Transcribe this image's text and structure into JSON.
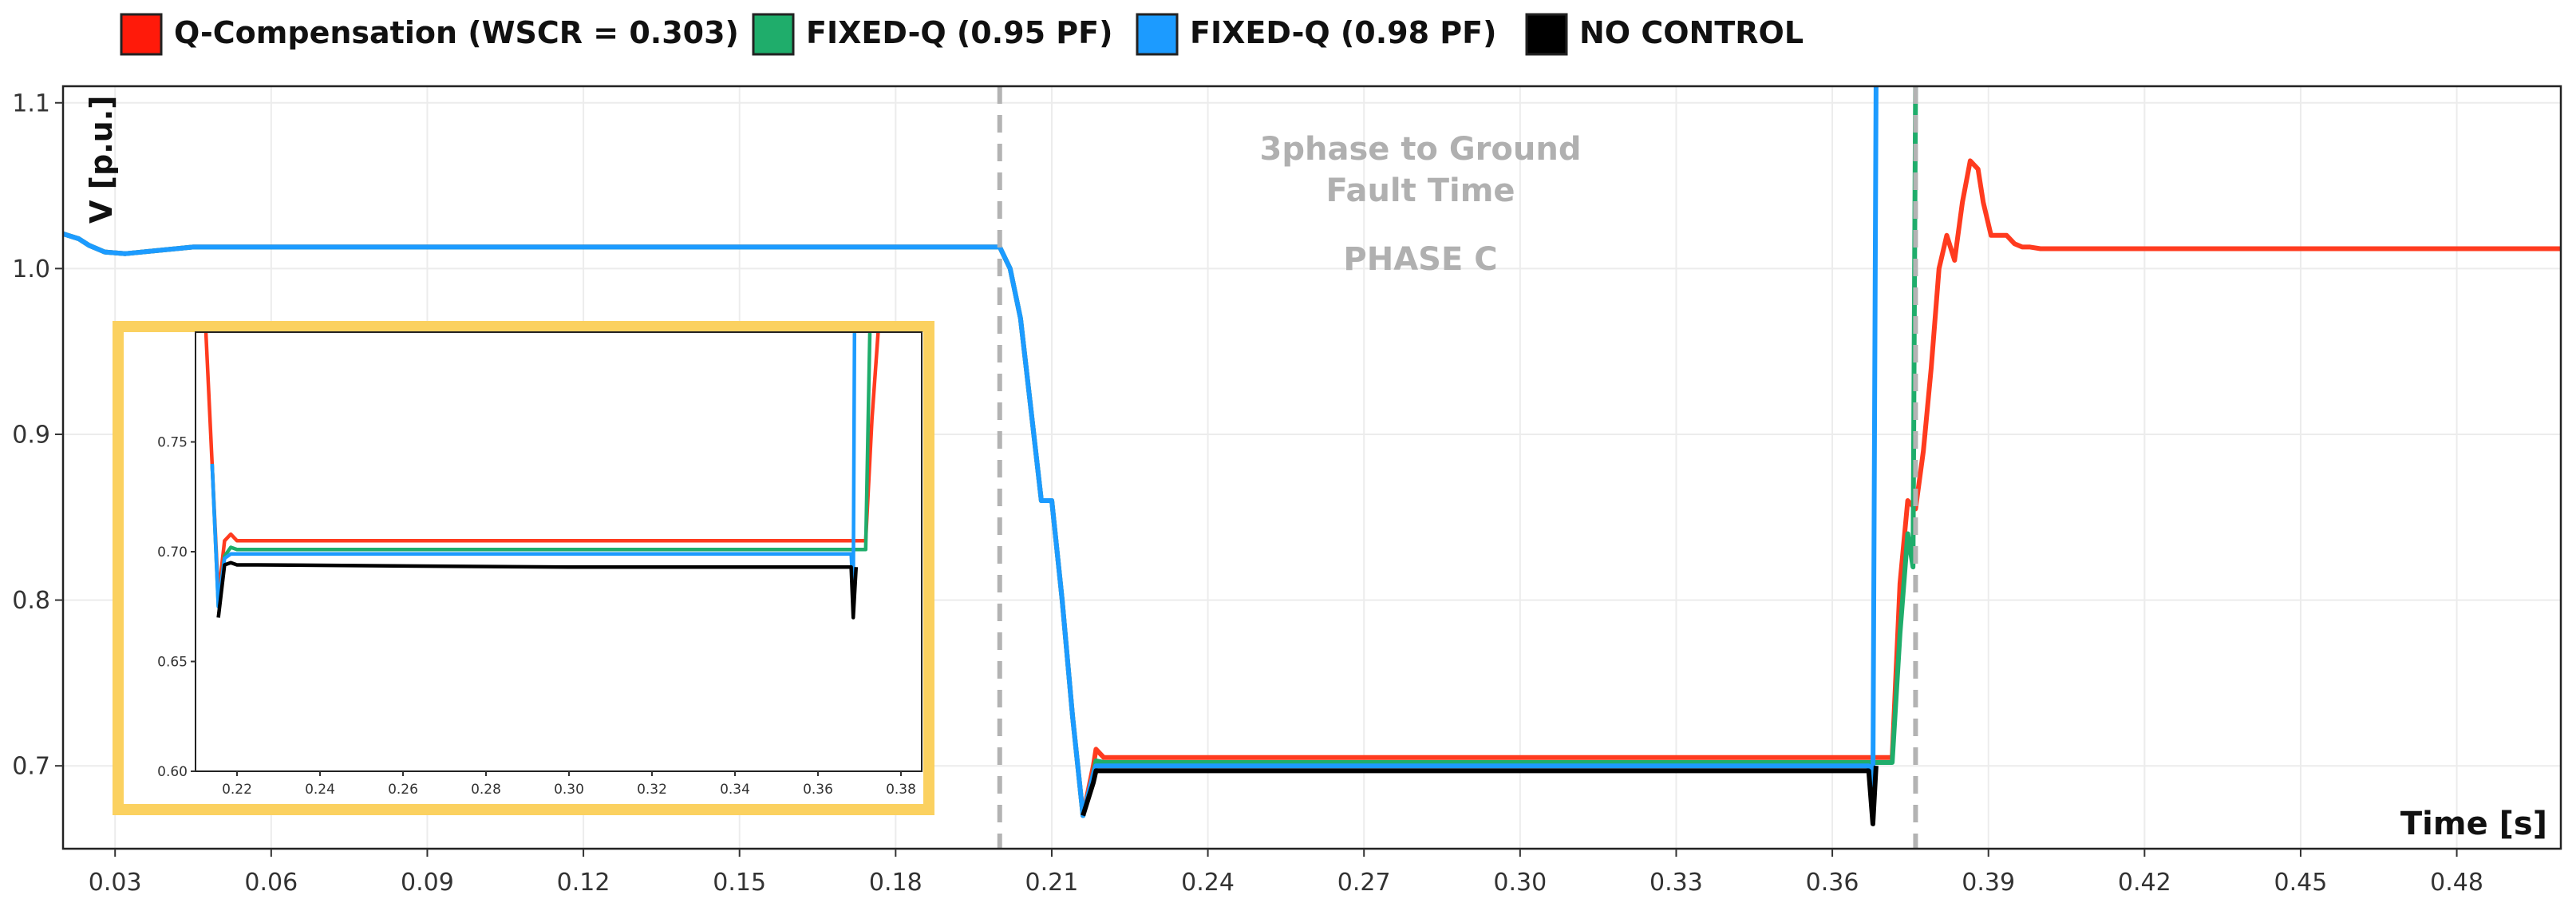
{
  "chart_data": [
    {
      "type": "line",
      "title": "",
      "xlabel": "Time [s]",
      "ylabel": "V [p.u.]",
      "xlim": [
        0.02,
        0.5
      ],
      "ylim": [
        0.65,
        1.11
      ],
      "xticks": [
        0.03,
        0.06,
        0.09,
        0.12,
        0.15,
        0.18,
        0.21,
        0.24,
        0.27,
        0.3,
        0.33,
        0.36,
        0.39,
        0.42,
        0.45,
        0.48
      ],
      "xtick_labels": [
        "0.03",
        "0.06",
        "0.09",
        "0.12",
        "0.15",
        "0.18",
        "0.21",
        "0.24",
        "0.27",
        "0.30",
        "0.33",
        "0.36",
        "0.39",
        "0.42",
        "0.45",
        "0.48"
      ],
      "yticks": [
        0.7,
        0.8,
        0.9,
        1.0,
        1.1
      ],
      "ytick_labels": [
        "0.7",
        "0.8",
        "0.9",
        "1.0",
        "1.1"
      ],
      "grid": true,
      "legend_position": "top",
      "vlines": [
        0.2,
        0.376
      ],
      "annotations": [
        "3phase to Ground",
        "Fault Time",
        "PHASE C"
      ],
      "series": [
        {
          "name": "Q-Compensation (WSCR = 0.303)",
          "color": "#ff3b1f",
          "x": [
            0.02,
            0.023,
            0.025,
            0.028,
            0.032,
            0.045,
            0.1,
            0.15,
            0.2,
            0.202,
            0.204,
            0.206,
            0.208,
            0.21,
            0.212,
            0.214,
            0.216,
            0.218,
            0.2185,
            0.22,
            0.225,
            0.23,
            0.3,
            0.368,
            0.3715,
            0.373,
            0.3745,
            0.376,
            0.3775,
            0.379,
            0.3805,
            0.382,
            0.3835,
            0.385,
            0.3865,
            0.388,
            0.389,
            0.3905,
            0.392,
            0.3935,
            0.395,
            0.3965,
            0.398,
            0.4,
            0.42,
            0.5
          ],
          "y": [
            1.021,
            1.018,
            1.014,
            1.01,
            1.009,
            1.013,
            1.013,
            1.013,
            1.013,
            1.0,
            0.97,
            0.915,
            0.86,
            0.86,
            0.8,
            0.73,
            0.67,
            0.7,
            0.71,
            0.705,
            0.705,
            0.705,
            0.705,
            0.705,
            0.705,
            0.81,
            0.86,
            0.855,
            0.89,
            0.94,
            1.0,
            1.02,
            1.005,
            1.04,
            1.065,
            1.06,
            1.04,
            1.02,
            1.02,
            1.02,
            1.015,
            1.013,
            1.013,
            1.012,
            1.012,
            1.012
          ]
        },
        {
          "name": "FIXED-Q (0.95 PF)",
          "color": "#1fad6b",
          "x": [
            0.02,
            0.023,
            0.025,
            0.028,
            0.032,
            0.045,
            0.1,
            0.15,
            0.2,
            0.202,
            0.204,
            0.206,
            0.208,
            0.21,
            0.212,
            0.214,
            0.216,
            0.218,
            0.2185,
            0.22,
            0.225,
            0.23,
            0.3,
            0.3715,
            0.373,
            0.3745,
            0.3755,
            0.376
          ],
          "y": [
            1.021,
            1.018,
            1.014,
            1.01,
            1.009,
            1.013,
            1.013,
            1.013,
            1.013,
            1.0,
            0.97,
            0.915,
            0.86,
            0.86,
            0.8,
            0.73,
            0.67,
            0.695,
            0.703,
            0.702,
            0.702,
            0.702,
            0.702,
            0.702,
            0.78,
            0.84,
            0.82,
            1.11
          ]
        },
        {
          "name": "FIXED-Q (0.98 PF)",
          "color": "#1c9bff",
          "x": [
            0.02,
            0.023,
            0.025,
            0.028,
            0.032,
            0.045,
            0.1,
            0.15,
            0.2,
            0.202,
            0.204,
            0.206,
            0.208,
            0.21,
            0.212,
            0.214,
            0.216,
            0.218,
            0.2185,
            0.22,
            0.225,
            0.23,
            0.3,
            0.367,
            0.3678,
            0.3684
          ],
          "y": [
            1.021,
            1.018,
            1.014,
            1.01,
            1.009,
            1.013,
            1.013,
            1.013,
            1.013,
            1.0,
            0.97,
            0.915,
            0.86,
            0.86,
            0.8,
            0.73,
            0.67,
            0.695,
            0.7,
            0.7,
            0.7,
            0.7,
            0.7,
            0.7,
            0.68,
            1.11
          ]
        },
        {
          "name": "NO CONTROL",
          "color": "#000000",
          "x": [
            0.216,
            0.218,
            0.2185,
            0.22,
            0.225,
            0.23,
            0.3,
            0.367,
            0.3678,
            0.3684
          ],
          "y": [
            0.67,
            0.69,
            0.697,
            0.697,
            0.697,
            0.697,
            0.697,
            0.697,
            0.665,
            0.7
          ]
        }
      ]
    },
    {
      "type": "line",
      "title": "",
      "xlabel": "",
      "ylabel": "",
      "xlim": [
        0.21,
        0.385
      ],
      "ylim": [
        0.6,
        0.8
      ],
      "xticks": [
        0.22,
        0.24,
        0.26,
        0.28,
        0.3,
        0.32,
        0.34,
        0.36,
        0.38
      ],
      "xtick_labels": [
        "0.22",
        "0.24",
        "0.26",
        "0.28",
        "0.30",
        "0.32",
        "0.34",
        "0.36",
        "0.38"
      ],
      "yticks": [
        0.6,
        0.65,
        0.7,
        0.75
      ],
      "ytick_labels": [
        "0.60",
        "0.65",
        "0.70",
        "0.75"
      ],
      "grid": false,
      "series": [
        {
          "name": "Q-Compensation (WSCR = 0.303)",
          "color": "#ff3b1f",
          "x": [
            0.2125,
            0.214,
            0.2155,
            0.217,
            0.2185,
            0.22,
            0.225,
            0.3,
            0.3715,
            0.373,
            0.3745
          ],
          "y": [
            0.8,
            0.74,
            0.68,
            0.705,
            0.708,
            0.705,
            0.705,
            0.705,
            0.705,
            0.76,
            0.8
          ]
        },
        {
          "name": "FIXED-Q (0.95 PF)",
          "color": "#1fad6b",
          "x": [
            0.214,
            0.2155,
            0.217,
            0.2185,
            0.22,
            0.225,
            0.3,
            0.3715,
            0.3725
          ],
          "y": [
            0.74,
            0.675,
            0.698,
            0.702,
            0.701,
            0.701,
            0.701,
            0.701,
            0.8
          ]
        },
        {
          "name": "FIXED-Q (0.98 PF)",
          "color": "#1c9bff",
          "x": [
            0.214,
            0.2155,
            0.217,
            0.2185,
            0.22,
            0.225,
            0.3,
            0.368,
            0.3685,
            0.3688
          ],
          "y": [
            0.74,
            0.675,
            0.697,
            0.699,
            0.699,
            0.699,
            0.699,
            0.699,
            0.68,
            0.8
          ]
        },
        {
          "name": "NO CONTROL",
          "color": "#000000",
          "x": [
            0.2155,
            0.217,
            0.2185,
            0.22,
            0.225,
            0.3,
            0.368,
            0.3685,
            0.3692
          ],
          "y": [
            0.67,
            0.694,
            0.695,
            0.694,
            0.694,
            0.693,
            0.693,
            0.67,
            0.693
          ]
        }
      ]
    }
  ]
}
